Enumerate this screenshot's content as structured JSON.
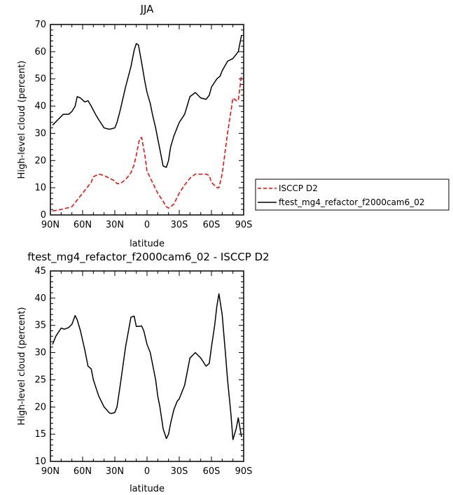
{
  "chart_data": [
    {
      "type": "line",
      "title": "JJA",
      "xlabel": "latitude",
      "ylabel": "High-level cloud (percent)",
      "xlim": [
        90,
        -90
      ],
      "ylim": [
        0,
        70
      ],
      "x_ticks": [
        90,
        60,
        30,
        0,
        -30,
        -60,
        -90
      ],
      "x_tick_labels": [
        "90N",
        "60N",
        "30N",
        "0",
        "30S",
        "60S",
        "90S"
      ],
      "y_ticks": [
        0,
        10,
        20,
        30,
        40,
        50,
        60,
        70
      ],
      "y_tick_labels": [
        "0",
        "10",
        "20",
        "30",
        "40",
        "50",
        "60",
        "70"
      ],
      "legend_position": "right",
      "series": [
        {
          "name": "ISCCP D2",
          "color": "#ff0000",
          "dash": "dashed",
          "x": [
            88,
            80,
            70,
            60,
            55,
            52,
            50,
            45,
            40,
            35,
            30,
            28,
            25,
            20,
            15,
            12,
            10,
            7,
            5,
            2,
            0,
            -2,
            -5,
            -10,
            -15,
            -18,
            -20,
            -22,
            -25,
            -30,
            -35,
            -40,
            -45,
            -50,
            -55,
            -58,
            -60,
            -65,
            -67,
            -70,
            -75,
            -80,
            -83,
            -85,
            -88
          ],
          "y": [
            1.5,
            2,
            3,
            8,
            10.5,
            12,
            14,
            15,
            14.5,
            13.5,
            12.5,
            11.5,
            11.5,
            13,
            15.5,
            18.5,
            22,
            28,
            28.5,
            22,
            16,
            14.5,
            12,
            8,
            5,
            3,
            2.5,
            3,
            4,
            8,
            11,
            13.5,
            15,
            15,
            15,
            14.5,
            12,
            10,
            10,
            15,
            30,
            43,
            42,
            42,
            51.5
          ]
        },
        {
          "name": "ftest_mg4_refactor_f2000cam6_02",
          "color": "#000000",
          "dash": "solid",
          "x": [
            88,
            83,
            78,
            73,
            70,
            67,
            65,
            62,
            58,
            55,
            52,
            48,
            45,
            40,
            35,
            30,
            28,
            25,
            20,
            15,
            12,
            10,
            8,
            5,
            2,
            0,
            -3,
            -5,
            -8,
            -10,
            -12,
            -15,
            -18,
            -20,
            -22,
            -25,
            -28,
            -30,
            -35,
            -40,
            -45,
            -50,
            -55,
            -58,
            -60,
            -65,
            -68,
            -70,
            -75,
            -80,
            -83,
            -85,
            -88
          ],
          "y": [
            33,
            35,
            37,
            37,
            38,
            40,
            43.5,
            43,
            41.5,
            42,
            40,
            37,
            35,
            32,
            31.5,
            32,
            34,
            38.5,
            47,
            54.5,
            60.5,
            63,
            62.5,
            56,
            49,
            45,
            41,
            37,
            32,
            28,
            24,
            18,
            17.5,
            20,
            25,
            29,
            32,
            34,
            37,
            43.5,
            45,
            43,
            42.5,
            44,
            47,
            50,
            51,
            53,
            56.5,
            57.5,
            59,
            60,
            66
          ]
        }
      ]
    },
    {
      "type": "line",
      "title": "ftest_mg4_refactor_f2000cam6_02 - ISCCP D2",
      "xlabel": "latitude",
      "ylabel": "High-level cloud (percent)",
      "xlim": [
        90,
        -90
      ],
      "ylim": [
        10,
        45
      ],
      "x_ticks": [
        90,
        60,
        30,
        0,
        -30,
        -60,
        -90
      ],
      "x_tick_labels": [
        "90N",
        "60N",
        "30N",
        "0",
        "30S",
        "60S",
        "90S"
      ],
      "y_ticks": [
        10,
        15,
        20,
        25,
        30,
        35,
        40,
        45
      ],
      "y_tick_labels": [
        "10",
        "15",
        "20",
        "25",
        "30",
        "35",
        "40",
        "45"
      ],
      "series": [
        {
          "color": "#000000",
          "dash": "solid",
          "x": [
            88,
            85,
            80,
            77,
            73,
            70,
            67,
            65,
            62,
            58,
            55,
            52,
            50,
            45,
            40,
            35,
            33,
            30,
            28,
            25,
            20,
            15,
            12,
            10,
            8,
            5,
            3,
            0,
            -3,
            -5,
            -8,
            -10,
            -12,
            -15,
            -18,
            -20,
            -22,
            -25,
            -28,
            -30,
            -35,
            -40,
            -45,
            -50,
            -55,
            -58,
            -60,
            -63,
            -65,
            -67,
            -70,
            -73,
            -75,
            -78,
            -80,
            -83,
            -85,
            -88
          ],
          "y": [
            31.5,
            33,
            34.5,
            34.3,
            34.6,
            35.2,
            36.8,
            36,
            34,
            30.5,
            27.5,
            27,
            25,
            22,
            20,
            18.9,
            18.8,
            19,
            20,
            24,
            31,
            36.5,
            36.7,
            34.8,
            34.8,
            34.9,
            34,
            31.5,
            30,
            28,
            25,
            22,
            20,
            16,
            14.2,
            15,
            17,
            19.5,
            21,
            21.5,
            24,
            29,
            30,
            29,
            27.5,
            28,
            31,
            35,
            38.5,
            40.8,
            37,
            30,
            25,
            19,
            14,
            16,
            18,
            14.5
          ]
        }
      ]
    }
  ]
}
